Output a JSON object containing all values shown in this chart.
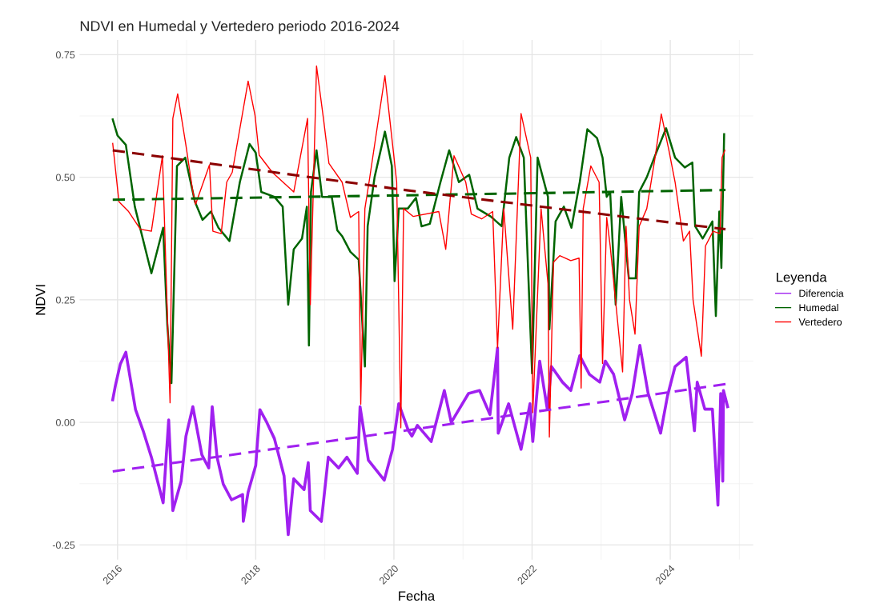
{
  "chart_data": {
    "type": "line",
    "title": "NDVI en Humedal y Vertedero periodo 2016-2024",
    "xlabel": "Fecha",
    "ylabel": "NDVI",
    "legend_title": "Leyenda",
    "legend": "right",
    "grid": true,
    "xlim": [
      2015.45,
      2025.2
    ],
    "xticks": [
      2016,
      2018,
      2020,
      2022,
      2024
    ],
    "ylim": [
      -0.28,
      0.78
    ],
    "yticks": [
      {
        "value": -0.25,
        "label": "-0.25"
      },
      {
        "value": 0,
        "label": "0.00"
      },
      {
        "value": 0.25,
        "label": "0.25"
      },
      {
        "value": 0.5,
        "label": "0.50"
      },
      {
        "value": 0.75,
        "label": "0.75"
      }
    ],
    "series": [
      {
        "name": "Diferencia",
        "color": "#a020f0",
        "x": [
          2015.93,
          2015.97,
          2016.04,
          2016.12,
          2016.26,
          2016.37,
          2016.49,
          2016.66,
          2016.74,
          2016.8,
          2016.92,
          2016.99,
          2017.09,
          2017.22,
          2017.32,
          2017.37,
          2017.44,
          2017.53,
          2017.65,
          2017.81,
          2017.82,
          2017.89,
          2018.0,
          2018.06,
          2018.16,
          2018.27,
          2018.41,
          2018.47,
          2018.55,
          2018.7,
          2018.76,
          2018.79,
          2018.95,
          2019.05,
          2019.2,
          2019.32,
          2019.47,
          2019.51,
          2019.63,
          2019.86,
          2019.98,
          2020.07,
          2020.21,
          2020.26,
          2020.34,
          2020.54,
          2020.73,
          2020.83,
          2021.08,
          2021.24,
          2021.39,
          2021.5,
          2021.51,
          2021.66,
          2021.84,
          2021.97,
          2022.01,
          2022.11,
          2022.22,
          2022.28,
          2022.44,
          2022.56,
          2022.69,
          2022.83,
          2022.98,
          2023.06,
          2023.18,
          2023.34,
          2023.45,
          2023.56,
          2023.68,
          2023.86,
          2023.96,
          2024.07,
          2024.23,
          2024.35,
          2024.39,
          2024.5,
          2024.61,
          2024.69,
          2024.73,
          2024.76,
          2024.77,
          2024.83
        ],
        "values": [
          0.046,
          0.076,
          0.119,
          0.143,
          0.026,
          -0.017,
          -0.071,
          -0.164,
          0.005,
          -0.18,
          -0.12,
          -0.028,
          0.032,
          -0.066,
          -0.093,
          0.032,
          -0.071,
          -0.126,
          -0.158,
          -0.147,
          -0.202,
          -0.142,
          -0.088,
          0.026,
          0.0,
          -0.033,
          -0.109,
          -0.229,
          -0.115,
          -0.137,
          -0.082,
          -0.18,
          -0.202,
          -0.071,
          -0.093,
          -0.071,
          -0.104,
          0.032,
          -0.077,
          -0.118,
          -0.055,
          0.038,
          -0.017,
          -0.028,
          -0.006,
          -0.039,
          0.065,
          0.0,
          0.059,
          0.065,
          0.016,
          0.152,
          -0.022,
          0.038,
          -0.055,
          0.038,
          -0.039,
          0.125,
          0.027,
          0.114,
          0.082,
          0.065,
          0.136,
          0.098,
          0.082,
          0.125,
          0.098,
          0.005,
          0.059,
          0.157,
          0.059,
          -0.022,
          0.054,
          0.114,
          0.133,
          -0.017,
          0.082,
          0.027,
          0.027,
          -0.169,
          0.059,
          -0.12,
          0.065,
          0.032
        ]
      },
      {
        "name": "Humedal",
        "color": "#006400",
        "x": [
          2015.93,
          2016.0,
          2016.12,
          2016.25,
          2016.49,
          2016.66,
          2016.72,
          2016.78,
          2016.86,
          2016.98,
          2017.12,
          2017.23,
          2017.35,
          2017.46,
          2017.62,
          2017.77,
          2017.91,
          2018.0,
          2018.08,
          2018.27,
          2018.39,
          2018.47,
          2018.55,
          2018.67,
          2018.74,
          2018.77,
          2018.8,
          2018.88,
          2018.96,
          2019.1,
          2019.18,
          2019.25,
          2019.37,
          2019.49,
          2019.58,
          2019.62,
          2019.72,
          2019.87,
          2019.97,
          2020.01,
          2020.07,
          2020.2,
          2020.32,
          2020.4,
          2020.52,
          2020.67,
          2020.8,
          2020.94,
          2021.09,
          2021.21,
          2021.4,
          2021.56,
          2021.67,
          2021.77,
          2021.88,
          2022.0,
          2022.08,
          2022.23,
          2022.25,
          2022.34,
          2022.46,
          2022.57,
          2022.69,
          2022.8,
          2022.94,
          2023.02,
          2023.08,
          2023.13,
          2023.21,
          2023.29,
          2023.4,
          2023.5,
          2023.55,
          2023.66,
          2023.78,
          2023.94,
          2024.07,
          2024.21,
          2024.32,
          2024.36,
          2024.47,
          2024.61,
          2024.66,
          2024.71,
          2024.74,
          2024.78
        ],
        "values": [
          0.618,
          0.585,
          0.566,
          0.44,
          0.304,
          0.397,
          0.2,
          0.08,
          0.523,
          0.54,
          0.45,
          0.413,
          0.43,
          0.397,
          0.37,
          0.49,
          0.568,
          0.55,
          0.47,
          0.46,
          0.44,
          0.24,
          0.353,
          0.375,
          0.44,
          0.157,
          0.47,
          0.555,
          0.46,
          0.46,
          0.392,
          0.38,
          0.348,
          0.332,
          0.114,
          0.4,
          0.5,
          0.593,
          0.523,
          0.288,
          0.436,
          0.436,
          0.458,
          0.4,
          0.405,
          0.488,
          0.555,
          0.49,
          0.505,
          0.436,
          0.42,
          0.4,
          0.54,
          0.582,
          0.54,
          0.1,
          0.54,
          0.46,
          0.19,
          0.41,
          0.44,
          0.397,
          0.49,
          0.598,
          0.58,
          0.54,
          0.46,
          0.47,
          0.24,
          0.46,
          0.294,
          0.294,
          0.47,
          0.5,
          0.544,
          0.6,
          0.54,
          0.52,
          0.53,
          0.4,
          0.375,
          0.41,
          0.217,
          0.43,
          0.315,
          0.588
        ]
      },
      {
        "name": "Vertedero",
        "color": "#ff0000",
        "x": [
          2015.93,
          2016.02,
          2016.16,
          2016.33,
          2016.49,
          2016.65,
          2016.76,
          2016.8,
          2016.87,
          2016.99,
          2017.09,
          2017.13,
          2017.33,
          2017.38,
          2017.5,
          2017.58,
          2017.66,
          2017.89,
          2017.99,
          2018.05,
          2018.24,
          2018.55,
          2018.75,
          2018.79,
          2018.88,
          2018.98,
          2019.06,
          2019.25,
          2019.37,
          2019.49,
          2019.52,
          2019.58,
          2019.64,
          2019.87,
          2019.99,
          2020.04,
          2020.1,
          2020.14,
          2020.28,
          2020.65,
          2020.75,
          2020.87,
          2021.04,
          2021.12,
          2021.27,
          2021.43,
          2021.5,
          2021.59,
          2021.72,
          2021.84,
          2021.98,
          2022.01,
          2022.13,
          2022.23,
          2022.25,
          2022.31,
          2022.4,
          2022.56,
          2022.68,
          2022.71,
          2022.74,
          2022.85,
          2022.97,
          2023.02,
          2023.08,
          2023.13,
          2023.31,
          2023.36,
          2023.41,
          2023.49,
          2023.55,
          2023.66,
          2023.78,
          2023.87,
          2023.98,
          2024.07,
          2024.19,
          2024.28,
          2024.33,
          2024.45,
          2024.51,
          2024.62,
          2024.72,
          2024.75,
          2024.79
        ],
        "values": [
          0.569,
          0.45,
          0.43,
          0.394,
          0.39,
          0.544,
          0.04,
          0.62,
          0.67,
          0.565,
          0.47,
          0.445,
          0.525,
          0.39,
          0.385,
          0.49,
          0.51,
          0.696,
          0.626,
          0.545,
          0.51,
          0.47,
          0.62,
          0.24,
          0.727,
          0.62,
          0.528,
          0.49,
          0.418,
          0.43,
          0.037,
          0.436,
          0.49,
          0.707,
          0.555,
          0.49,
          -0.011,
          0.436,
          0.42,
          0.43,
          0.353,
          0.544,
          0.49,
          0.425,
          0.415,
          0.43,
          0.152,
          0.436,
          0.19,
          0.63,
          0.54,
          0.02,
          0.436,
          0.283,
          -0.03,
          0.327,
          0.34,
          0.33,
          0.335,
          0.07,
          0.436,
          0.523,
          0.49,
          0.12,
          0.418,
          0.36,
          0.103,
          0.4,
          0.25,
          0.18,
          0.4,
          0.436,
          0.54,
          0.629,
          0.555,
          0.49,
          0.37,
          0.39,
          0.25,
          0.135,
          0.36,
          0.39,
          0.385,
          0.54,
          0.555
        ]
      },
      {
        "color": "#a020f0",
        "line_style": "dashed",
        "x": [
          2015.93,
          2020.1,
          2024.8
        ],
        "values": [
          -0.1,
          -0.018,
          0.078
        ]
      },
      {
        "color": "#006400",
        "line_style": "dashed",
        "x": [
          2015.93,
          2020.1,
          2024.8
        ],
        "values": [
          0.454,
          0.463,
          0.474
        ]
      },
      {
        "color": "#8b0000",
        "line_style": "dashed",
        "x": [
          2015.93,
          2020.1,
          2024.8
        ],
        "values": [
          0.555,
          0.475,
          0.394
        ]
      }
    ]
  }
}
